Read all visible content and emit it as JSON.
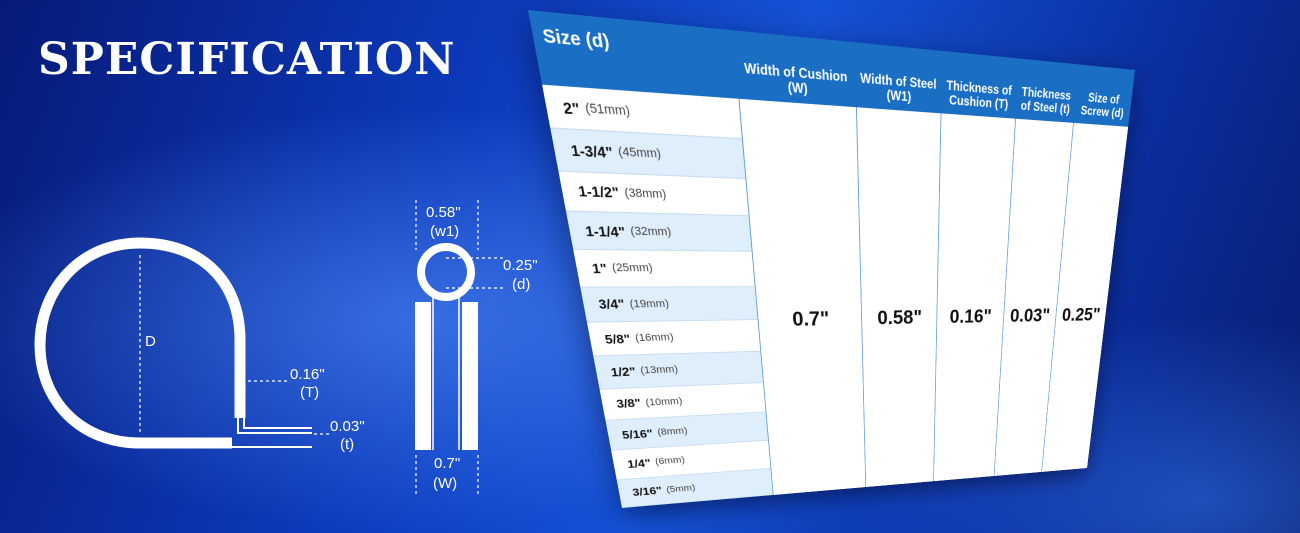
{
  "title": "SPECIFICATION",
  "clamp_diagram": {
    "diameter_label": "D",
    "cushion_thickness": "0.16\"",
    "cushion_thickness_symbol": "(T)",
    "steel_thickness": "0.03\"",
    "steel_thickness_symbol": "(t)"
  },
  "side_diagram": {
    "steel_width": "0.58\"",
    "steel_width_symbol": "(w1)",
    "screw_size": "0.25\"",
    "screw_size_symbol": "(d)",
    "cushion_width": "0.7\"",
    "cushion_width_symbol": "(W)"
  },
  "table": {
    "headers": [
      "Size (d)",
      "Width of Cushion (W)",
      "Width of Steel (W1)",
      "Thickness of Cushion (T)",
      "Thickness of Steel (t)",
      "Size of Screw (d)"
    ],
    "sizes": [
      {
        "inch": "2\"",
        "mm": "(51mm)"
      },
      {
        "inch": "1-3/4\"",
        "mm": "(45mm)"
      },
      {
        "inch": "1-1/2\"",
        "mm": "(38mm)"
      },
      {
        "inch": "1-1/4\"",
        "mm": "(32mm)"
      },
      {
        "inch": "1\"",
        "mm": "(25mm)"
      },
      {
        "inch": "3/4\"",
        "mm": "(19mm)"
      },
      {
        "inch": "5/8\"",
        "mm": "(16mm)"
      },
      {
        "inch": "1/2\"",
        "mm": "(13mm)"
      },
      {
        "inch": "3/8\"",
        "mm": "(10mm)"
      },
      {
        "inch": "5/16\"",
        "mm": "(8mm)"
      },
      {
        "inch": "1/4\"",
        "mm": "(6mm)"
      },
      {
        "inch": "3/16\"",
        "mm": "(5mm)"
      }
    ],
    "values": [
      "0.7\"",
      "0.58\"",
      "0.16\"",
      "0.03\"",
      "0.25\""
    ]
  },
  "colors": {
    "header": "#1a6fc4",
    "alt_row": "#dfeefb",
    "background": "#0d3bbd"
  }
}
